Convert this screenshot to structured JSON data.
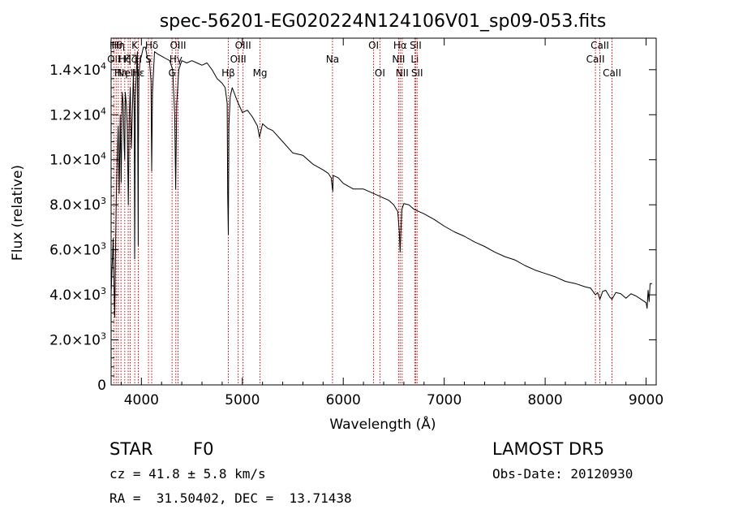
{
  "chart_data": {
    "type": "line",
    "title": "spec-56201-EG020224N124106V01_sp09-053.fits",
    "xlabel": "Wavelength (Å)",
    "ylabel": "Flux (relative)",
    "xlim": [
      3700,
      9100
    ],
    "ylim": [
      0,
      15400
    ],
    "x_ticks": [
      4000,
      5000,
      6000,
      7000,
      8000,
      9000
    ],
    "y_ticks": [
      {
        "value": 0,
        "mantissa": "0",
        "exp": ""
      },
      {
        "value": 2000,
        "mantissa": "2.0×10",
        "exp": "3"
      },
      {
        "value": 4000,
        "mantissa": "4.0×10",
        "exp": "3"
      },
      {
        "value": 6000,
        "mantissa": "6.0×10",
        "exp": "3"
      },
      {
        "value": 8000,
        "mantissa": "8.0×10",
        "exp": "3"
      },
      {
        "value": 10000,
        "mantissa": "1.0×10",
        "exp": "4"
      },
      {
        "value": 12000,
        "mantissa": "1.2×10",
        "exp": "4"
      },
      {
        "value": 14000,
        "mantissa": "1.4×10",
        "exp": "4"
      }
    ],
    "grid": false,
    "series": [
      {
        "color": "#000000",
        "x": [
          3700,
          3720,
          3735,
          3750,
          3760,
          3770,
          3780,
          3790,
          3800,
          3810,
          3820,
          3830,
          3835,
          3840,
          3850,
          3860,
          3870,
          3880,
          3890,
          3900,
          3910,
          3920,
          3930,
          3933,
          3940,
          3950,
          3960,
          3968,
          3970,
          3975,
          3985,
          4000,
          4020,
          4040,
          4060,
          4080,
          4095,
          4102,
          4110,
          4130,
          4160,
          4200,
          4240,
          4280,
          4310,
          4330,
          4340,
          4350,
          4370,
          4400,
          4450,
          4500,
          4550,
          4600,
          4650,
          4700,
          4750,
          4800,
          4830,
          4850,
          4855,
          4861,
          4867,
          4880,
          4900,
          4950,
          5000,
          5050,
          5100,
          5150,
          5170,
          5200,
          5250,
          5300,
          5400,
          5500,
          5600,
          5700,
          5800,
          5850,
          5880,
          5890,
          5896,
          5900,
          5950,
          6000,
          6100,
          6200,
          6300,
          6350,
          6400,
          6450,
          6500,
          6540,
          6555,
          6563,
          6570,
          6580,
          6600,
          6650,
          6700,
          6800,
          6900,
          7000,
          7100,
          7200,
          7300,
          7400,
          7500,
          7600,
          7700,
          7800,
          7900,
          8000,
          8100,
          8200,
          8300,
          8400,
          8450,
          8498,
          8520,
          8542,
          8570,
          8600,
          8640,
          8662,
          8700,
          8750,
          8800,
          8850,
          8900,
          8950,
          9000,
          9010,
          9020,
          9030,
          9040,
          9060
        ],
        "y": [
          4000,
          6500,
          3000,
          8000,
          10000,
          11500,
          8500,
          12000,
          9000,
          13000,
          12500,
          10500,
          10000,
          13000,
          12500,
          11500,
          8000,
          12000,
          13200,
          10500,
          12000,
          13800,
          12000,
          5600,
          12800,
          13800,
          14800,
          6200,
          10500,
          13500,
          14400,
          14600,
          15000,
          15000,
          14500,
          14400,
          13500,
          9500,
          13000,
          14800,
          14700,
          14600,
          14500,
          14400,
          14000,
          12000,
          8700,
          12500,
          14000,
          14400,
          14300,
          14400,
          14300,
          14200,
          14300,
          14000,
          13600,
          13400,
          13200,
          12500,
          8500,
          6700,
          11500,
          12800,
          13200,
          12600,
          12100,
          12200,
          11900,
          11500,
          11000,
          11600,
          11400,
          11300,
          10800,
          10300,
          10200,
          9800,
          9550,
          9400,
          9200,
          8800,
          8600,
          9300,
          9200,
          8950,
          8700,
          8700,
          8500,
          8400,
          8300,
          8200,
          8000,
          7700,
          6800,
          5900,
          6800,
          7800,
          8050,
          8000,
          7800,
          7600,
          7350,
          7050,
          6800,
          6600,
          6350,
          6150,
          5900,
          5700,
          5550,
          5300,
          5100,
          4950,
          4800,
          4600,
          4500,
          4350,
          4300,
          4000,
          4100,
          3800,
          4150,
          4200,
          3900,
          3800,
          4100,
          4050,
          3850,
          4050,
          3950,
          3800,
          3650,
          3400,
          4200,
          3700,
          4500,
          4500
        ]
      }
    ],
    "line_markers": [
      {
        "x": 3727,
        "label": "OII",
        "row": 1
      },
      {
        "x": 3750,
        "label": "Hθ",
        "row": 0
      },
      {
        "x": 3771,
        "label": "Hη",
        "row": 0
      },
      {
        "x": 3798,
        "label": "Hη",
        "row": 2
      },
      {
        "x": 3835,
        "label": "Hζ",
        "row": 1
      },
      {
        "x": 3869,
        "label": "NeIII",
        "row": 2
      },
      {
        "x": 3889,
        "label": "Hζ",
        "row": 1
      },
      {
        "x": 3934,
        "label": "K",
        "row": 0
      },
      {
        "x": 3969,
        "label": "H",
        "row": 1
      },
      {
        "x": 3970,
        "label": "Hε",
        "row": 2
      },
      {
        "x": 4102,
        "label": "Hδ",
        "row": 0
      },
      {
        "x": 4070,
        "label": "S",
        "row": 1
      },
      {
        "x": 4304,
        "label": "G",
        "row": 2
      },
      {
        "x": 4341,
        "label": "Hγ",
        "row": 1
      },
      {
        "x": 4363,
        "label": "OIII",
        "row": 0
      },
      {
        "x": 4861,
        "label": "Hβ",
        "row": 2
      },
      {
        "x": 4959,
        "label": "OIII",
        "row": 1
      },
      {
        "x": 5007,
        "label": "OIII",
        "row": 0
      },
      {
        "x": 5175,
        "label": "Mg",
        "row": 2
      },
      {
        "x": 5893,
        "label": "Na",
        "row": 1
      },
      {
        "x": 6300,
        "label": "OI",
        "row": 0
      },
      {
        "x": 6363,
        "label": "OI",
        "row": 2
      },
      {
        "x": 6548,
        "label": "NII",
        "row": 1
      },
      {
        "x": 6563,
        "label": "Hα",
        "row": 0
      },
      {
        "x": 6583,
        "label": "NII",
        "row": 2
      },
      {
        "x": 6708,
        "label": "Li",
        "row": 1
      },
      {
        "x": 6717,
        "label": "SII",
        "row": 0
      },
      {
        "x": 6731,
        "label": "SII",
        "row": 2
      },
      {
        "x": 8498,
        "label": "CaII",
        "row": 1
      },
      {
        "x": 8542,
        "label": "CaII",
        "row": 0
      },
      {
        "x": 8662,
        "label": "CaII",
        "row": 2
      }
    ]
  },
  "info": {
    "object_type": "STAR",
    "subclass": "F0",
    "survey": "LAMOST DR5",
    "cz": "cz = 41.8 ± 5.8 km/s",
    "obs_date": "Obs-Date: 20120930",
    "coords": "RA =  31.50402, DEC =  13.71438"
  }
}
